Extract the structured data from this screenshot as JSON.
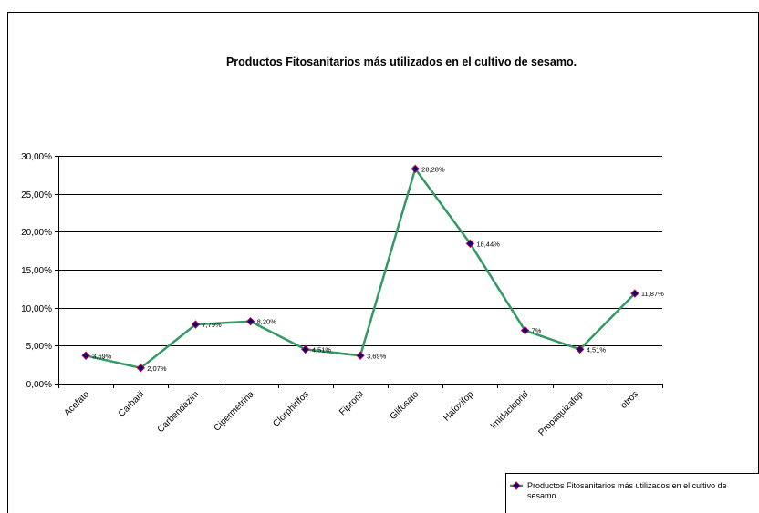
{
  "chart_data": {
    "type": "line",
    "title": "Productos Fitosanitarios más utilizados en el cultivo de sesamo.",
    "categories": [
      "Acefato",
      "Carbaril",
      "Carbendazim",
      "Cipermetrina",
      "Clorphirifos",
      "Fipronil",
      "Glifosato",
      "Haloxifop",
      "Imidacloprid",
      "Propaquizafop",
      "otros"
    ],
    "series": [
      {
        "name": "Productos Fitosanitarios más utilizados en el cultivo de sesamo.",
        "values": [
          3.69,
          2.07,
          7.79,
          8.2,
          4.51,
          3.69,
          28.28,
          18.44,
          7.0,
          4.51,
          11.87
        ],
        "labels": [
          "3,69%",
          "2,07%",
          "7,79%",
          "8,20%",
          "4,51%",
          "3,69%",
          "28,28%",
          "18,44%",
          "7%",
          "4,51%",
          "11,87%"
        ],
        "line_color": "#339966",
        "marker_color": "#000080",
        "marker_outline": "#cc0033"
      }
    ],
    "ylim": [
      0,
      30
    ],
    "yticks": [
      0,
      5,
      10,
      15,
      20,
      25,
      30
    ],
    "ytick_labels": [
      "0,00%",
      "5,00%",
      "10,00%",
      "15,00%",
      "20,00%",
      "25,00%",
      "30,00%"
    ],
    "xlabel": "",
    "ylabel": "",
    "grid": true,
    "legend_placement": "bottom-right",
    "legend_label_lines": [
      "Productos Fitosanitarios más utilizados en el cultivo de",
      "sesamo."
    ]
  }
}
